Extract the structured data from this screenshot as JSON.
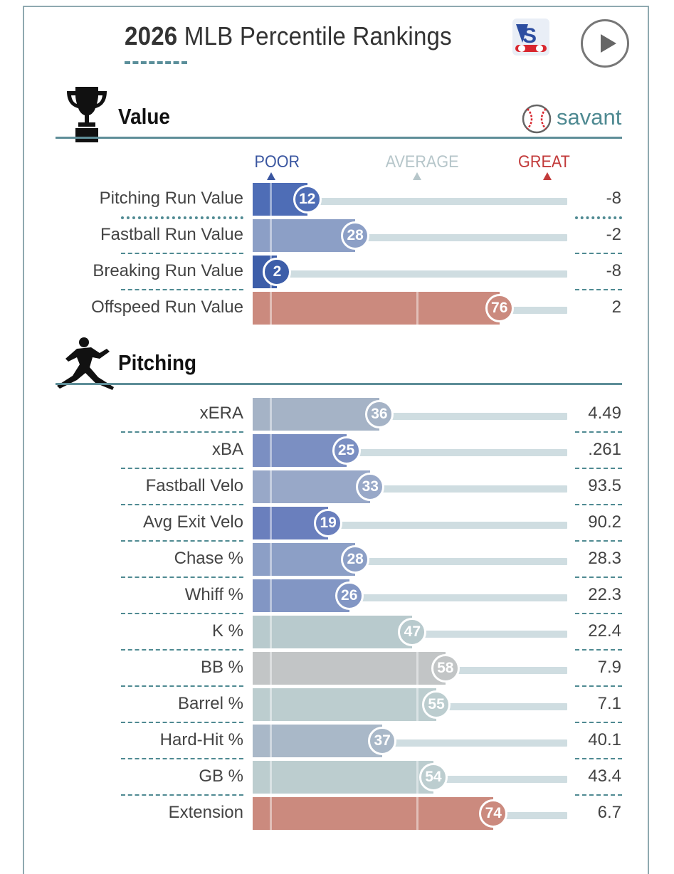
{
  "header": {
    "year": "2026",
    "title_rest": " MLB Percentile Rankings"
  },
  "icons": {
    "vs": "vs-logo-icon",
    "play": "play-icon",
    "trophy": "trophy-icon",
    "pitcher": "pitcher-icon",
    "savant": "baseball-icon"
  },
  "savant_label": "savant",
  "scale": {
    "poor": "POOR",
    "average": "AVERAGE",
    "great": "GREAT"
  },
  "colors": {
    "poor": "#4a6cb4",
    "average": "#b8c9ce",
    "great": "#d0847a",
    "neutral": "#c4c8c9"
  },
  "sections": [
    {
      "title": "Value",
      "rows": [
        {
          "label": "Pitching Run Value",
          "pct": 12,
          "value": "-8",
          "color": "#4e6db6"
        },
        {
          "label": "Fastball Run Value",
          "pct": 28,
          "value": "-2",
          "color": "#8c9fc6"
        },
        {
          "label": "Breaking Run Value",
          "pct": 2,
          "value": "-8",
          "color": "#3d5ea9"
        },
        {
          "label": "Offspeed Run Value",
          "pct": 76,
          "value": "2",
          "color": "#cb8a7e"
        }
      ]
    },
    {
      "title": "Pitching",
      "rows": [
        {
          "label": "xERA",
          "pct": 36,
          "value": "4.49",
          "color": "#a5b3c6"
        },
        {
          "label": "xBA",
          "pct": 25,
          "value": ".261",
          "color": "#7b8fc2"
        },
        {
          "label": "Fastball Velo",
          "pct": 33,
          "value": "93.5",
          "color": "#98a8c8"
        },
        {
          "label": "Avg Exit Velo",
          "pct": 19,
          "value": "90.2",
          "color": "#6a7fbd"
        },
        {
          "label": "Chase %",
          "pct": 28,
          "value": "28.3",
          "color": "#8c9fc6"
        },
        {
          "label": "Whiff %",
          "pct": 26,
          "value": "22.3",
          "color": "#8296c4"
        },
        {
          "label": "K %",
          "pct": 47,
          "value": "22.4",
          "color": "#b8cacd"
        },
        {
          "label": "BB %",
          "pct": 58,
          "value": "7.9",
          "color": "#c2c5c6"
        },
        {
          "label": "Barrel %",
          "pct": 55,
          "value": "7.1",
          "color": "#bccdcf"
        },
        {
          "label": "Hard-Hit %",
          "pct": 37,
          "value": "40.1",
          "color": "#a9b8c8"
        },
        {
          "label": "GB %",
          "pct": 54,
          "value": "43.4",
          "color": "#bccdcf"
        },
        {
          "label": "Extension",
          "pct": 74,
          "value": "6.7",
          "color": "#cb8a7e"
        }
      ]
    }
  ]
}
